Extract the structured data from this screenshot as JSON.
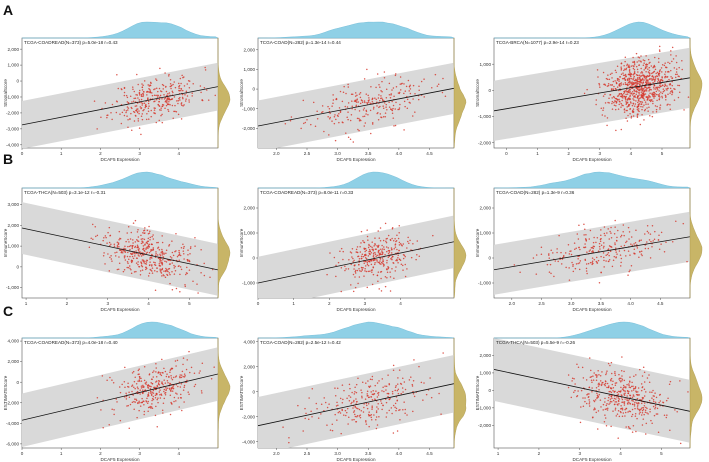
{
  "panel_labels": [
    "A",
    "B",
    "C"
  ],
  "chart_data": [
    {
      "type": "scatter",
      "row": 0,
      "col": 0,
      "title": "TCGA-COADREAD(N=373)  p=5.0e-18 r=0.43",
      "xlabel": "DCAF5 Expression",
      "ylabel": "StromalScore",
      "xlim": [
        0,
        5.0
      ],
      "ylim": [
        -4200,
        2700
      ],
      "xticks": [
        0,
        1,
        2,
        3,
        4
      ],
      "yticks": [
        -4000,
        -3000,
        -2000,
        -1000,
        0,
        1000,
        2000
      ],
      "ytick_labels": [
        "-4,000",
        "-3,000",
        "-2,000",
        "-1,000",
        "0",
        "1,000",
        "2,000"
      ],
      "regression": {
        "slope": 480,
        "intercept": -2750,
        "band": 1500
      },
      "point_count": 330,
      "x_center": 3.4,
      "x_spread": 0.55,
      "seed": 11
    },
    {
      "type": "scatter",
      "row": 0,
      "col": 1,
      "title": "TCGA-COAD(N=282)  p=1.3e-14 r=0.44",
      "xlabel": "DCAF5 Expression",
      "ylabel": "StromalScore",
      "xlim": [
        1.7,
        4.9
      ],
      "ylim": [
        -3000,
        2600
      ],
      "xticks": [
        2.0,
        2.5,
        3.0,
        3.5,
        4.0,
        4.5
      ],
      "yticks": [
        -2000,
        -1000,
        0,
        1000,
        2000
      ],
      "ytick_labels": [
        "-2,000",
        "-1,000",
        "0",
        "1,000",
        "2,000"
      ],
      "regression": {
        "slope": 600,
        "intercept": -2900,
        "band": 1300
      },
      "point_count": 260,
      "x_center": 3.5,
      "x_spread": 0.5,
      "seed": 23
    },
    {
      "type": "scatter",
      "row": 0,
      "col": 2,
      "title": "TCGA-BRCA(N=1077)  p=2.9e-14 r=0.23",
      "xlabel": "DCAF5 Expression",
      "ylabel": "StromalScore",
      "xlim": [
        -0.4,
        5.9
      ],
      "ylim": [
        -2200,
        2000
      ],
      "xticks": [
        0,
        1,
        2,
        3,
        4,
        5
      ],
      "yticks": [
        -2000,
        -1000,
        0,
        1000
      ],
      "ytick_labels": [
        "-2,000",
        "-1,000",
        "0",
        "1,000"
      ],
      "regression": {
        "slope": 200,
        "intercept": -700,
        "band": 1150
      },
      "point_count": 800,
      "x_center": 4.3,
      "x_spread": 0.55,
      "seed": 37
    },
    {
      "type": "scatter",
      "row": 1,
      "col": 0,
      "title": "TCGA-THCA(N=503)  p=3.1e-12 r=-0.31",
      "xlabel": "DCAF5 Expression",
      "ylabel": "ImmuneScore",
      "xlim": [
        0.9,
        5.7
      ],
      "ylim": [
        -1500,
        3800
      ],
      "xticks": [
        1,
        2,
        3,
        4,
        5
      ],
      "yticks": [
        -1000,
        0,
        1000,
        2000,
        3000
      ],
      "ytick_labels": [
        "-1,000",
        "0",
        "1,000",
        "2,000",
        "3,000"
      ],
      "regression": {
        "slope": -420,
        "intercept": 2250,
        "band": 1250
      },
      "point_count": 420,
      "x_center": 4.0,
      "x_spread": 0.6,
      "seed": 41
    },
    {
      "type": "scatter",
      "row": 1,
      "col": 1,
      "title": "TCGA-COADREAD(N=373)  p=8.0e-11 r=0.33",
      "xlabel": "DCAF5 Expression",
      "ylabel": "ImmuneScore",
      "xlim": [
        0,
        5.5
      ],
      "ylim": [
        -1600,
        2800
      ],
      "xticks": [
        0,
        1,
        2,
        3,
        4
      ],
      "yticks": [
        -1000,
        0,
        1000,
        2000
      ],
      "ytick_labels": [
        "-1,000",
        "0",
        "1,000",
        "2,000"
      ],
      "regression": {
        "slope": 300,
        "intercept": -1000,
        "band": 1050
      },
      "point_count": 330,
      "x_center": 3.4,
      "x_spread": 0.55,
      "seed": 53
    },
    {
      "type": "scatter",
      "row": 1,
      "col": 2,
      "title": "TCGA-COAD(N=282)  p=1.3e-9 r=0.36",
      "xlabel": "DCAF5 Expression",
      "ylabel": "ImmuneScore",
      "xlim": [
        1.7,
        5.0
      ],
      "ylim": [
        -1600,
        2800
      ],
      "xticks": [
        2.0,
        2.5,
        3.0,
        3.5,
        4.0,
        4.5
      ],
      "yticks": [
        -1000,
        0,
        1000,
        2000
      ],
      "ytick_labels": [
        "-1,000",
        "0",
        "1,000",
        "2,000"
      ],
      "regression": {
        "slope": 400,
        "intercept": -1150,
        "band": 1000
      },
      "point_count": 260,
      "x_center": 3.5,
      "x_spread": 0.5,
      "seed": 67
    },
    {
      "type": "scatter",
      "row": 2,
      "col": 0,
      "title": "TCGA-COADREAD(N=373)  p=4.0e-18 r=0.40",
      "xlabel": "DCAF5 Expression",
      "ylabel": "ESTIMATEScore",
      "xlim": [
        0,
        5.0
      ],
      "ylim": [
        -6400,
        4300
      ],
      "xticks": [
        0,
        1,
        2,
        3,
        4
      ],
      "yticks": [
        -6000,
        -4000,
        -2000,
        0,
        2000,
        4000
      ],
      "ytick_labels": [
        "-6,000",
        "-4,000",
        "-2,000",
        "0",
        "2,000",
        "4,000"
      ],
      "regression": {
        "slope": 900,
        "intercept": -3700,
        "band": 2600
      },
      "point_count": 330,
      "x_center": 3.4,
      "x_spread": 0.55,
      "seed": 71
    },
    {
      "type": "scatter",
      "row": 2,
      "col": 1,
      "title": "TCGA-COAD(N=282)  p=2.5e-12 r=0.42",
      "xlabel": "DCAF5 Expression",
      "ylabel": "ESTIMATEScore",
      "xlim": [
        1.7,
        4.9
      ],
      "ylim": [
        -4500,
        4300
      ],
      "xticks": [
        2.0,
        2.5,
        3.0,
        3.5,
        4.0,
        4.5
      ],
      "yticks": [
        -4000,
        -2000,
        0,
        2000,
        4000
      ],
      "ytick_labels": [
        "-4,000",
        "-2,000",
        "0",
        "2,000",
        "4,000"
      ],
      "regression": {
        "slope": 1050,
        "intercept": -4500,
        "band": 2300
      },
      "point_count": 260,
      "x_center": 3.5,
      "x_spread": 0.5,
      "seed": 83
    },
    {
      "type": "scatter",
      "row": 2,
      "col": 2,
      "title": "TCGA-THCA(N=503)  p=5.5e-9 r=-0.26",
      "xlabel": "DCAF5 Expression",
      "ylabel": "ESTIMATEScore",
      "xlim": [
        0.9,
        5.7
      ],
      "ylim": [
        -3300,
        3000
      ],
      "xticks": [
        1,
        2,
        3,
        4,
        5
      ],
      "yticks": [
        -2000,
        -1000,
        0,
        1000,
        2000
      ],
      "ytick_labels": [
        "-2,000",
        "-1,000",
        "0",
        "1,000",
        "2,000"
      ],
      "regression": {
        "slope": -500,
        "intercept": 1650,
        "band": 1800
      },
      "point_count": 420,
      "x_center": 4.0,
      "x_spread": 0.6,
      "seed": 97
    }
  ],
  "colors": {
    "points": "#d63a2f",
    "band": "#d9d9d9",
    "line": "#111111",
    "top_density": "#8fd0e6",
    "side_density": "#c8b567",
    "frame": "#555555"
  }
}
